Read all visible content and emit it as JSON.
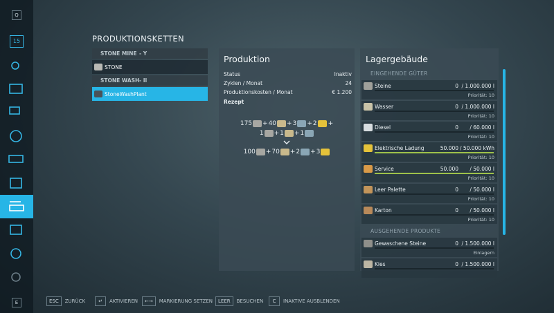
{
  "sidebar": {
    "top_key": "Q",
    "calendar_day": "15",
    "bottom_key": "E"
  },
  "title": "PRODUKTIONSKETTEN",
  "chains": [
    {
      "name": "STONE MINE",
      "tag": "- Y",
      "items": [
        "STONE"
      ]
    },
    {
      "name": "STONE WASH",
      "tag": "- II",
      "items": [
        "StoneWashPlant"
      ]
    }
  ],
  "production": {
    "title": "Produktion",
    "rows": [
      [
        "Status",
        "Inaktiv"
      ],
      [
        "Zyklen / Monat",
        "24"
      ],
      [
        "Produktionskosten / Monat",
        "€ 1.200"
      ]
    ],
    "recipe_title": "Rezept",
    "separator": "+",
    "input_lines": [
      [
        175,
        40,
        3,
        2
      ],
      [
        1,
        1,
        1
      ]
    ],
    "outputs": [
      100,
      70,
      2,
      3
    ]
  },
  "storage": {
    "title": "Lagergebäude",
    "sections": [
      {
        "title": "EINGEHENDE GÜTER",
        "items": [
          {
            "name": "Steine",
            "amount": "0",
            "capacity": "/ 1.000.000 l",
            "note": "Priorität: 10"
          },
          {
            "name": "Wasser",
            "amount": "0",
            "capacity": "/ 1.000.000 l",
            "note": "Priorität: 10"
          },
          {
            "name": "Diesel",
            "amount": "0",
            "capacity": "/ 60.000 l",
            "note": "Priorität: 10"
          },
          {
            "name": "Elektrische Ladung",
            "amount": "50.000",
            "capacity": "/ 50.000 kWh",
            "note": "Priorität: 10"
          },
          {
            "name": "Service",
            "amount": "50.000",
            "capacity": "/ 50.000 l",
            "note": "Priorität: 10"
          },
          {
            "name": "Leer Palette",
            "amount": "0",
            "capacity": "/ 50.000 l",
            "note": "Priorität: 10"
          },
          {
            "name": "Karton",
            "amount": "0",
            "capacity": "/ 50.000 l",
            "note": "Priorität: 10"
          }
        ]
      },
      {
        "title": "AUSGEHENDE PRODUKTE",
        "items": [
          {
            "name": "Gewaschene Steine",
            "amount": "0",
            "capacity": "/ 1.500.000 l",
            "note": "Einlagern"
          },
          {
            "name": "Kies",
            "amount": "0",
            "capacity": "/ 1.500.000 l"
          }
        ]
      }
    ]
  },
  "footer": [
    {
      "key": "ESC",
      "label": "ZURÜCK"
    },
    {
      "key": "↵",
      "label": "AKTIVIEREN"
    },
    {
      "key": "←→",
      "label": "MARKIERUNG SETZEN"
    },
    {
      "key": "LEER",
      "label": "BESUCHEN"
    },
    {
      "key": "C",
      "label": "INAKTIVE AUSBLENDEN"
    }
  ]
}
